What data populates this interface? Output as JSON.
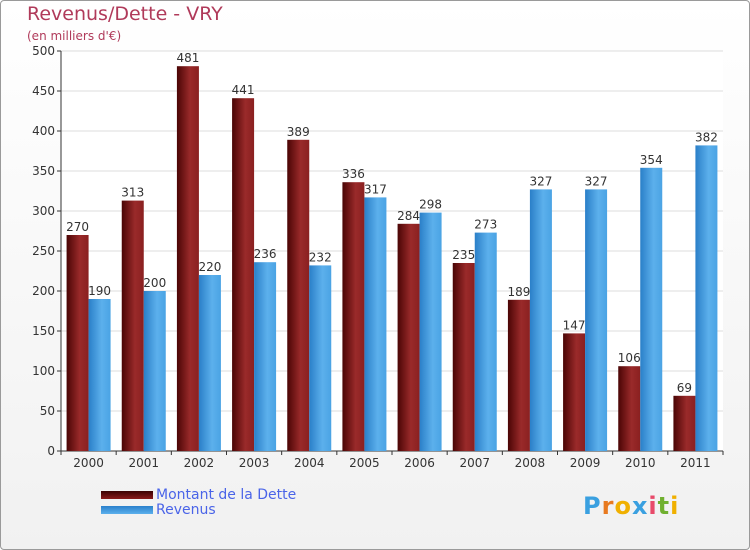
{
  "title": "Revenus/Dette - VRY",
  "subtitle": "(en milliers d'€)",
  "logo_text": "Proxiti",
  "colors": {
    "title": "#b03a5a",
    "legend_text": "#4a64e8",
    "dette": "#7a1010",
    "revenus": "#4aa3e4",
    "gridline": "#dddddd"
  },
  "chart_data": {
    "type": "bar",
    "categories": [
      "2000",
      "2001",
      "2002",
      "2003",
      "2004",
      "2005",
      "2006",
      "2007",
      "2008",
      "2009",
      "2010",
      "2011"
    ],
    "series": [
      {
        "name": "Montant de la Dette",
        "values": [
          270,
          313,
          481,
          441,
          389,
          336,
          284,
          235,
          189,
          147,
          106,
          69
        ]
      },
      {
        "name": "Revenus",
        "values": [
          190,
          200,
          220,
          236,
          232,
          317,
          298,
          273,
          327,
          327,
          354,
          382
        ]
      }
    ],
    "yticks": [
      0,
      50,
      100,
      150,
      200,
      250,
      300,
      350,
      400,
      450,
      500
    ],
    "ylim": [
      0,
      500
    ],
    "grid": true,
    "legend": "bottom-left",
    "data_labels": true
  }
}
